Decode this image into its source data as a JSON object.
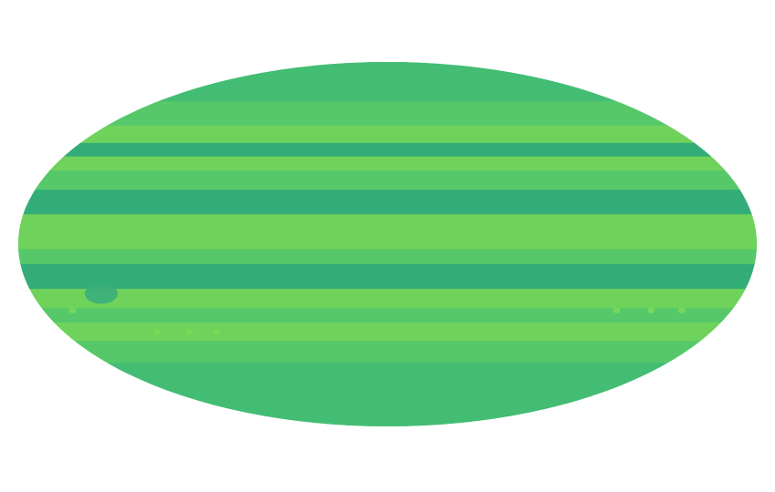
{
  "map": {
    "projection": "mollweide",
    "subject": "jupiter",
    "colors": {
      "background": "#ffffff",
      "base": "#44bd74",
      "light_band": "#6fd25a",
      "dark_band": "#33ad78",
      "mid_band": "#56c86a",
      "storm": "#3aae7a",
      "spot": "#7ddb55"
    },
    "bands": [
      {
        "lat_top": 90,
        "lat_bottom": 62,
        "tone": "base"
      },
      {
        "lat_top": 62,
        "lat_bottom": 50,
        "tone": "mid_band"
      },
      {
        "lat_top": 50,
        "lat_bottom": 42,
        "tone": "light_band"
      },
      {
        "lat_top": 42,
        "lat_bottom": 36,
        "tone": "dark_band"
      },
      {
        "lat_top": 36,
        "lat_bottom": 30,
        "tone": "light_band"
      },
      {
        "lat_top": 30,
        "lat_bottom": 22,
        "tone": "mid_band"
      },
      {
        "lat_top": 22,
        "lat_bottom": 12,
        "tone": "dark_band"
      },
      {
        "lat_top": 12,
        "lat_bottom": -2,
        "tone": "light_band"
      },
      {
        "lat_top": -2,
        "lat_bottom": -8,
        "tone": "mid_band"
      },
      {
        "lat_top": -8,
        "lat_bottom": -18,
        "tone": "dark_band"
      },
      {
        "lat_top": -18,
        "lat_bottom": -26,
        "tone": "light_band"
      },
      {
        "lat_top": -26,
        "lat_bottom": -32,
        "tone": "mid_band"
      },
      {
        "lat_top": -32,
        "lat_bottom": -40,
        "tone": "light_band"
      },
      {
        "lat_top": -40,
        "lat_bottom": -50,
        "tone": "mid_band"
      },
      {
        "lat_top": -50,
        "lat_bottom": -90,
        "tone": "base"
      }
    ],
    "features": [
      {
        "name": "great-red-spot",
        "lon": -145,
        "lat": -20,
        "tone": "storm"
      },
      {
        "name": "white-oval",
        "lon": -165,
        "lat": -27,
        "tone": "spot"
      },
      {
        "name": "white-oval",
        "lon": -128,
        "lat": -36,
        "tone": "spot"
      },
      {
        "name": "white-oval",
        "lon": -110,
        "lat": -36,
        "tone": "spot"
      },
      {
        "name": "white-oval",
        "lon": -95,
        "lat": -36,
        "tone": "spot"
      },
      {
        "name": "white-oval",
        "lon": 120,
        "lat": -27,
        "tone": "spot"
      },
      {
        "name": "white-oval",
        "lon": 138,
        "lat": -27,
        "tone": "spot"
      },
      {
        "name": "white-oval",
        "lon": 154,
        "lat": -27,
        "tone": "spot"
      }
    ]
  }
}
